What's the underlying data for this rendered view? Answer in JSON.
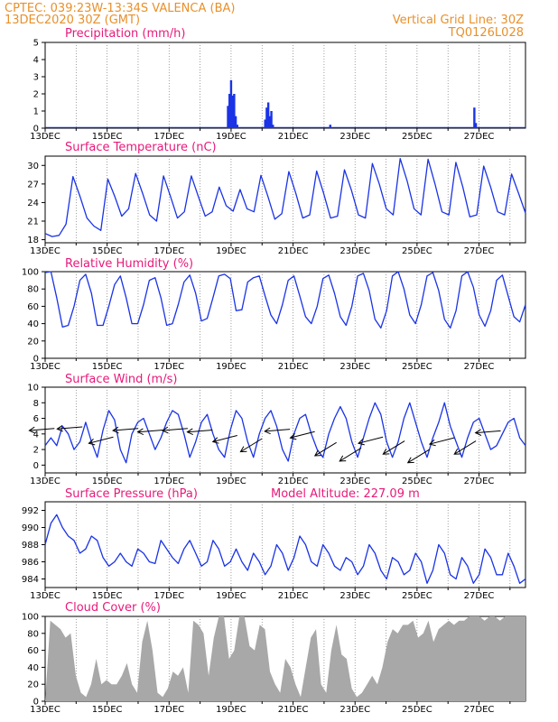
{
  "header": {
    "line1": "CPTEC:  039:23W-13:34S  VALENCA (BA)",
    "line2": "13DEC2020 30Z (GMT)",
    "grid_note": "Vertical Grid Line: 30Z",
    "code": "TQ0126L028"
  },
  "colors": {
    "header": "#e8902a",
    "title": "#e8197a",
    "line": "#1a33e6",
    "cloud": "#a8a8a8",
    "arrow": "#000000"
  },
  "chart_data": [
    {
      "type": "bar",
      "title": "Precipitation (mm/h)",
      "x_ticks": [
        "13DEC",
        "15DEC",
        "17DEC",
        "19DEC",
        "21DEC",
        "23DEC",
        "25DEC",
        "27DEC"
      ],
      "y_ticks": [
        0,
        1,
        2,
        3,
        4,
        5
      ],
      "ylim": [
        0,
        5
      ],
      "xlim_days": [
        13,
        28.5
      ],
      "x_day": [
        18.9,
        18.95,
        19.0,
        19.05,
        19.1,
        19.15,
        19.2,
        20.1,
        20.15,
        20.2,
        20.25,
        20.3,
        20.35,
        22.2,
        26.85,
        26.9
      ],
      "values": [
        1.3,
        2.0,
        2.8,
        1.9,
        2.0,
        0.7,
        0.2,
        0.5,
        1.2,
        1.5,
        0.7,
        1.0,
        0.2,
        0.2,
        1.2,
        0.3
      ]
    },
    {
      "type": "line",
      "title": "Surface Temperature (nC)",
      "x_ticks": [
        "13DEC",
        "15DEC",
        "17DEC",
        "19DEC",
        "21DEC",
        "23DEC",
        "25DEC",
        "27DEC"
      ],
      "y_ticks": [
        18,
        21,
        24,
        27,
        30
      ],
      "ylim": [
        17.5,
        31.5
      ],
      "series": [
        {
          "values": [
            19,
            18.5,
            18.7,
            20.5,
            28.2,
            25,
            21.5,
            20.2,
            19.5,
            27.8,
            25,
            21.8,
            23,
            28.7,
            25.5,
            22,
            21,
            28.3,
            25,
            21.5,
            22.5,
            28.3,
            25,
            21.8,
            22.5,
            26.5,
            23.5,
            22.6,
            26.1,
            23,
            22.5,
            28.4,
            25,
            21.3,
            22.2,
            29,
            25.5,
            21.5,
            22,
            29.1,
            25.5,
            21.5,
            21.8,
            29.3,
            26,
            22,
            21.5,
            30.3,
            27,
            23,
            22,
            31.1,
            27.5,
            23,
            22,
            31,
            27,
            22.5,
            22,
            30.5,
            26.5,
            21.7,
            22,
            29.9,
            26.5,
            22.5,
            22,
            28.6,
            25.5,
            22.3
          ]
        }
      ]
    },
    {
      "type": "line",
      "title": "Relative Humidity (%)",
      "x_ticks": [
        "13DEC",
        "15DEC",
        "17DEC",
        "19DEC",
        "21DEC",
        "23DEC",
        "25DEC",
        "27DEC"
      ],
      "y_ticks": [
        0,
        20,
        40,
        60,
        80,
        100
      ],
      "ylim": [
        0,
        100
      ],
      "series": [
        {
          "values": [
            99,
            100,
            70,
            36,
            38,
            60,
            90,
            97,
            75,
            38,
            38,
            60,
            85,
            95,
            70,
            40,
            40,
            62,
            90,
            93,
            70,
            38,
            40,
            62,
            88,
            96,
            75,
            43,
            46,
            70,
            95,
            97,
            92,
            55,
            56,
            88,
            93,
            95,
            72,
            50,
            40,
            62,
            90,
            95,
            72,
            48,
            40,
            60,
            92,
            96,
            75,
            48,
            38,
            60,
            95,
            98,
            78,
            45,
            35,
            55,
            95,
            100,
            80,
            50,
            40,
            62,
            95,
            99,
            78,
            45,
            35,
            55,
            95,
            100,
            82,
            50,
            37,
            55,
            90,
            96,
            72,
            48,
            42,
            62
          ]
        }
      ]
    },
    {
      "type": "line",
      "title": "Surface Wind (m/s)",
      "x_ticks": [
        "13DEC",
        "15DEC",
        "17DEC",
        "19DEC",
        "21DEC",
        "23DEC",
        "25DEC",
        "27DEC"
      ],
      "y_ticks": [
        0,
        2,
        4,
        6,
        8,
        10
      ],
      "ylim": [
        -1,
        10
      ],
      "series": [
        {
          "values": [
            2.5,
            3.5,
            2.5,
            5,
            4,
            2,
            3,
            5.5,
            3,
            1,
            4.5,
            7,
            5.8,
            2,
            0.3,
            4,
            5.5,
            6,
            4,
            2,
            3.5,
            5.5,
            7,
            6.5,
            4,
            1,
            3,
            5.5,
            6.5,
            4,
            2,
            1,
            4.5,
            7,
            6,
            3,
            1,
            4,
            6,
            7,
            5,
            2,
            0.5,
            4,
            6,
            6.5,
            4,
            2,
            1,
            4,
            6,
            7.5,
            6,
            3,
            1,
            3.5,
            6,
            8,
            6.5,
            3,
            1,
            3,
            6,
            8,
            5.5,
            3,
            1,
            3.5,
            5.5,
            8,
            5,
            3,
            1,
            3.5,
            5.5,
            6,
            4,
            2,
            2.5,
            4,
            5.5,
            6,
            3.5,
            2.5
          ]
        }
      ],
      "vectors": [
        {
          "day": 13.3,
          "level": 4.7
        },
        {
          "day": 14.2,
          "level": 4.9
        },
        {
          "day": 15.2,
          "level": 3.6
        },
        {
          "day": 16.0,
          "level": 4.7
        },
        {
          "day": 16.8,
          "level": 4.5
        },
        {
          "day": 17.6,
          "level": 4.7
        },
        {
          "day": 18.4,
          "level": 4.5
        },
        {
          "day": 19.2,
          "level": 3.8
        },
        {
          "day": 20.0,
          "level": 3.4
        },
        {
          "day": 20.9,
          "level": 4.6
        },
        {
          "day": 21.7,
          "level": 4.3
        },
        {
          "day": 22.4,
          "level": 2.9
        },
        {
          "day": 23.2,
          "level": 2.2
        },
        {
          "day": 23.9,
          "level": 3.6
        },
        {
          "day": 24.6,
          "level": 3.1
        },
        {
          "day": 25.4,
          "level": 2.0
        },
        {
          "day": 26.2,
          "level": 3.5
        },
        {
          "day": 26.9,
          "level": 3.1
        },
        {
          "day": 27.7,
          "level": 4.4
        }
      ]
    },
    {
      "type": "line",
      "title": "Surface Pressure (hPa)",
      "annotation": "Model Altitude: 227.09  m",
      "x_ticks": [
        "13DEC",
        "15DEC",
        "17DEC",
        "19DEC",
        "21DEC",
        "23DEC",
        "25DEC",
        "27DEC"
      ],
      "y_ticks": [
        984,
        986,
        988,
        990,
        992
      ],
      "ylim": [
        983,
        993
      ],
      "series": [
        {
          "values": [
            988,
            990.5,
            991.5,
            990,
            989,
            988.5,
            987,
            987.5,
            989,
            988.5,
            986.5,
            985.5,
            986,
            987,
            986,
            985.5,
            987.5,
            987,
            986,
            985.8,
            988.5,
            987.5,
            986.5,
            985.8,
            987.5,
            988.5,
            987,
            985.5,
            986,
            988.5,
            987.5,
            985.5,
            986,
            987.5,
            986,
            985,
            987,
            986,
            984.5,
            985.5,
            988,
            987,
            985,
            986.5,
            989,
            988,
            986,
            985.5,
            988,
            987,
            985.5,
            985,
            986.5,
            986,
            984.5,
            985.5,
            988,
            987,
            985,
            984,
            986.5,
            986,
            984.5,
            985,
            987,
            986,
            983.5,
            985,
            988,
            987,
            984.5,
            984,
            986.5,
            985.5,
            983.5,
            984.5,
            987.5,
            986.5,
            984.5,
            984.5,
            987,
            985.5,
            983.5,
            984
          ]
        }
      ]
    },
    {
      "type": "area",
      "title": "Cloud Cover (%)",
      "x_ticks": [
        "13DEC",
        "15DEC",
        "17DEC",
        "19DEC",
        "21DEC",
        "23DEC",
        "25DEC",
        "27DEC"
      ],
      "y_ticks": [
        0,
        20,
        40,
        60,
        80,
        100
      ],
      "ylim": [
        0,
        100
      ],
      "series": [
        {
          "values": [
            0,
            95,
            90,
            85,
            75,
            80,
            30,
            10,
            5,
            20,
            50,
            20,
            25,
            20,
            20,
            30,
            45,
            20,
            10,
            70,
            95,
            60,
            10,
            5,
            15,
            35,
            30,
            40,
            10,
            95,
            90,
            80,
            30,
            75,
            100,
            100,
            50,
            60,
            100,
            100,
            65,
            60,
            90,
            85,
            35,
            20,
            10,
            50,
            40,
            20,
            5,
            40,
            75,
            85,
            20,
            10,
            60,
            90,
            55,
            50,
            15,
            5,
            10,
            20,
            30,
            20,
            40,
            70,
            85,
            80,
            90,
            90,
            95,
            75,
            80,
            95,
            70,
            85,
            90,
            95,
            90,
            95,
            95,
            100,
            100,
            100,
            95,
            100,
            100,
            95,
            100,
            100,
            100,
            100,
            100
          ]
        }
      ]
    }
  ]
}
